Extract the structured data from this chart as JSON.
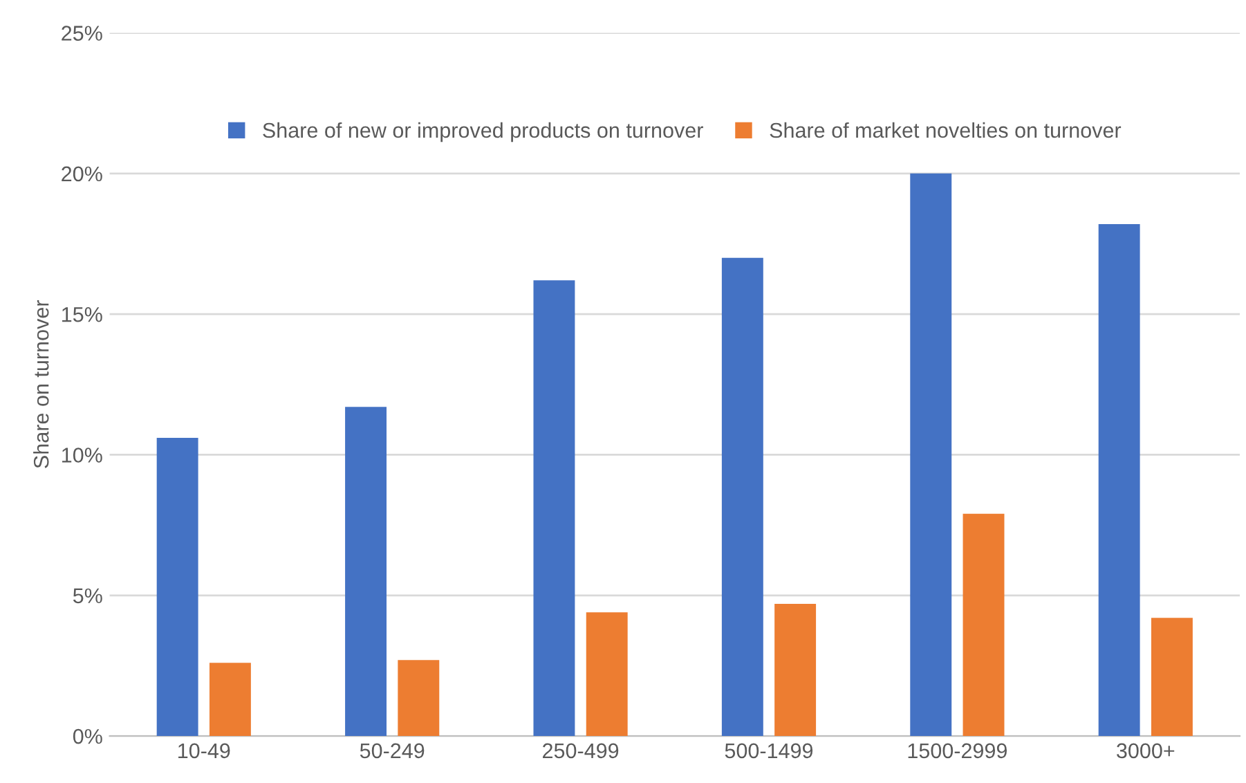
{
  "chart_data": {
    "type": "bar",
    "ylabel": "Share on turnover",
    "categories": [
      "10-49",
      "50-249",
      "250-499",
      "500-1499",
      "1500-2999",
      "3000+"
    ],
    "series": [
      {
        "name": "Share of new or improved products on turnover",
        "color": "#4472c4",
        "values": [
          10.6,
          11.7,
          16.2,
          17.0,
          20.0,
          18.2
        ]
      },
      {
        "name": "Share of market novelties on turnover",
        "color": "#ed7d31",
        "values": [
          2.6,
          2.7,
          4.4,
          4.7,
          7.9,
          4.2
        ]
      }
    ],
    "ylim": [
      0,
      25
    ],
    "yticks": [
      {
        "value": 0,
        "label": "0%"
      },
      {
        "value": 5,
        "label": "5%"
      },
      {
        "value": 10,
        "label": "10%"
      },
      {
        "value": 15,
        "label": "15%"
      },
      {
        "value": 20,
        "label": "20%"
      },
      {
        "value": 25,
        "label": "25%"
      }
    ],
    "grid": "y",
    "legend": "top"
  }
}
